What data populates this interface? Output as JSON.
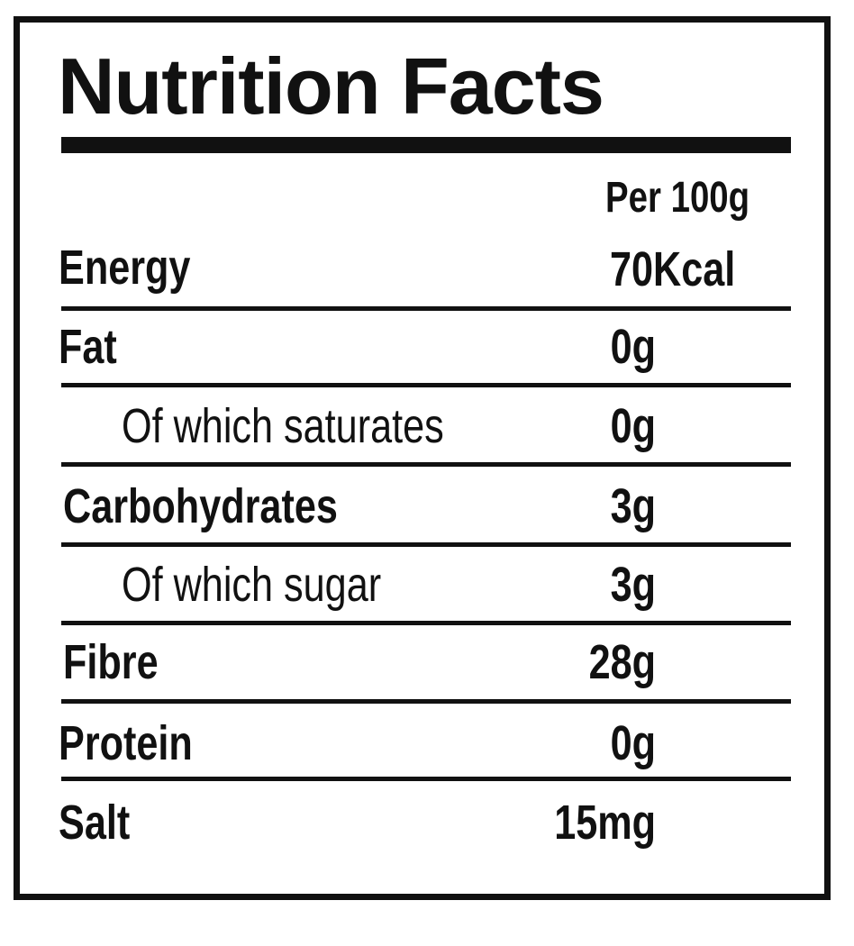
{
  "title": "Nutrition Facts",
  "column_header": "Per 100g",
  "rows": [
    {
      "label": "Energy",
      "value": "70Kcal",
      "indent": false
    },
    {
      "label": "Fat",
      "value": "0g",
      "indent": false
    },
    {
      "label": "Of which saturates",
      "value": "0g",
      "indent": true
    },
    {
      "label": "Carbohydrates",
      "value": "3g",
      "indent": false
    },
    {
      "label": "Of which sugar",
      "value": "3g",
      "indent": true
    },
    {
      "label": "Fibre",
      "value": "28g",
      "indent": false
    },
    {
      "label": "Protein",
      "value": "0g",
      "indent": false
    },
    {
      "label": "Salt",
      "value": "15mg",
      "indent": false
    }
  ]
}
